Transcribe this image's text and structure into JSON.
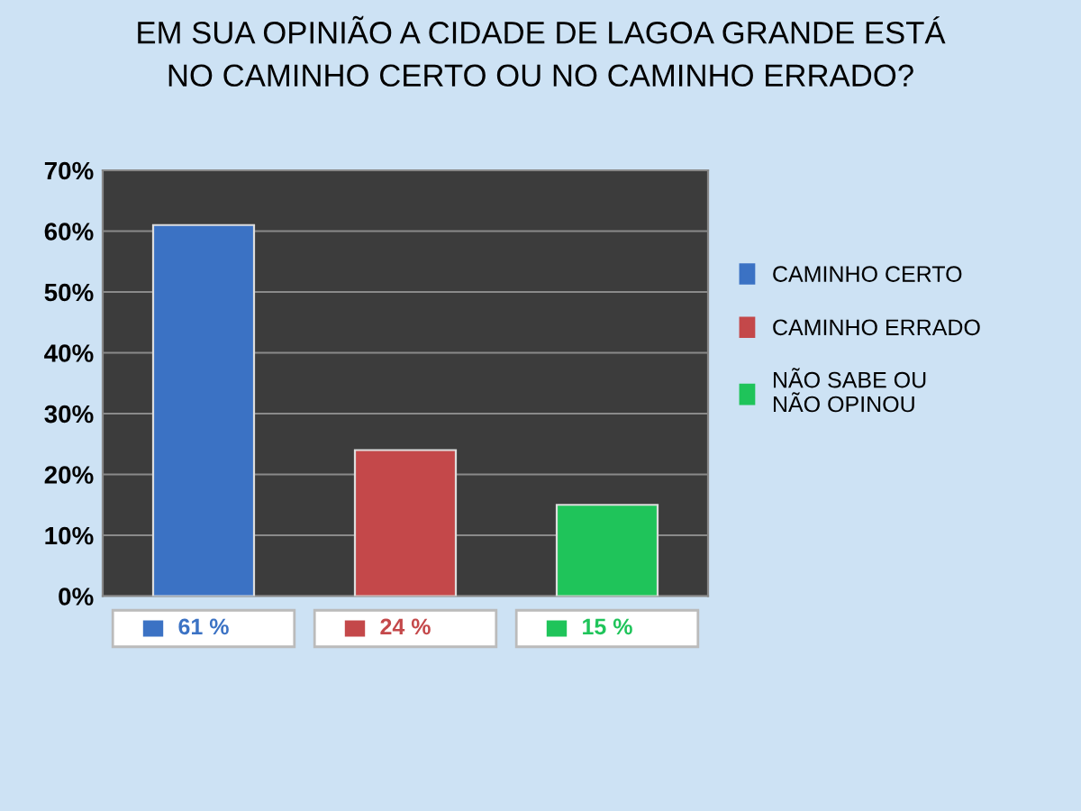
{
  "chart_data": {
    "type": "bar",
    "title": "EM SUA OPINIÃO A CIDADE DE LAGOA GRANDE ESTÁ\nNO CAMINHO CERTO OU NO CAMINHO ERRADO?",
    "categories": [
      null,
      null,
      null
    ],
    "series": [
      {
        "name": "CAMINHO CERTO",
        "color": "#3b72c4",
        "values": [
          61,
          null,
          null
        ],
        "value_labels": [
          "61 %",
          null,
          null
        ]
      },
      {
        "name": "CAMINHO ERRADO",
        "color": "#c4484a",
        "values": [
          null,
          24,
          null
        ],
        "value_labels": [
          null,
          "24 %",
          null
        ]
      },
      {
        "name": "NÃO SABE OU\nNÃO OPINOU",
        "color": "#1fc45a",
        "values": [
          null,
          null,
          15
        ],
        "value_labels": [
          null,
          null,
          "15 %"
        ]
      }
    ],
    "ylim": [
      0,
      70
    ],
    "yticks": [
      {
        "value": 0,
        "label": "0%"
      },
      {
        "value": 10,
        "label": "10%"
      },
      {
        "value": 20,
        "label": "20%"
      },
      {
        "value": 30,
        "label": "30%"
      },
      {
        "value": 40,
        "label": "40%"
      },
      {
        "value": 50,
        "label": "50%"
      },
      {
        "value": 60,
        "label": "60%"
      },
      {
        "value": 70,
        "label": "70%"
      }
    ],
    "grid": "y",
    "legend": "right"
  }
}
